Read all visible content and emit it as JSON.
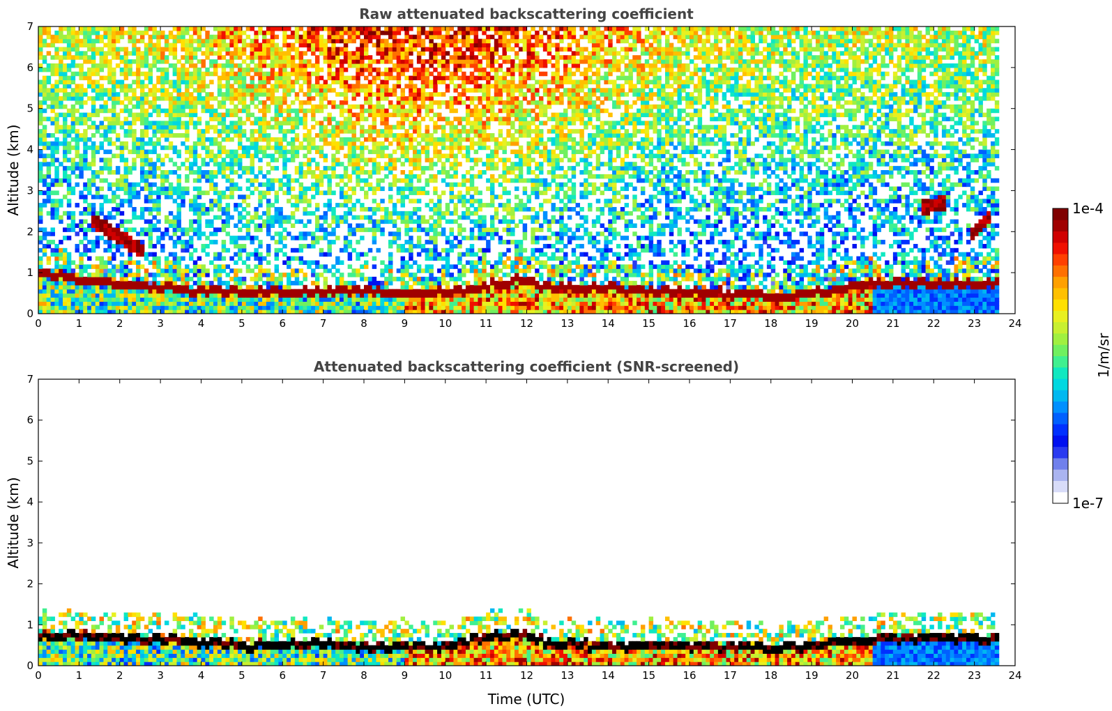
{
  "chart_data": [
    {
      "type": "heatmap",
      "id": "raw",
      "title": "Raw attenuated backscattering coefficient",
      "xlabel": "",
      "ylabel": "Altitude (km)",
      "xlim": [
        0,
        24
      ],
      "ylim": [
        0,
        7
      ],
      "xticks": [
        0,
        1,
        2,
        3,
        4,
        5,
        6,
        7,
        8,
        9,
        10,
        11,
        12,
        13,
        14,
        15,
        16,
        17,
        18,
        19,
        20,
        21,
        22,
        23,
        24
      ],
      "yticks": [
        0,
        1,
        2,
        3,
        4,
        5,
        6,
        7
      ],
      "data_end_time": 23.6,
      "noise_background": true,
      "features": [
        {
          "label": "boundary layer top (dense aerosol)",
          "x": [
            0,
            0.5,
            1,
            1.5,
            2,
            2.5,
            3,
            4,
            5,
            6,
            7,
            8,
            9,
            10,
            11,
            11.8,
            12.5,
            13,
            14,
            15,
            16,
            17,
            18,
            18.5,
            19,
            19.5,
            20,
            20.5
          ],
          "y": [
            1.0,
            0.95,
            0.85,
            0.8,
            0.75,
            0.7,
            0.65,
            0.6,
            0.55,
            0.55,
            0.55,
            0.6,
            0.5,
            0.55,
            0.7,
            0.85,
            0.65,
            0.65,
            0.65,
            0.6,
            0.55,
            0.5,
            0.45,
            0.45,
            0.5,
            0.6,
            0.7,
            0.75
          ]
        },
        {
          "label": "elevated layer",
          "x": [
            1.3,
            2.6
          ],
          "y": [
            2.3,
            1.5
          ]
        },
        {
          "label": "cloud",
          "x": [
            21.7,
            22.3
          ],
          "y": [
            2.6,
            2.7
          ]
        },
        {
          "label": "cloud",
          "x": [
            22.9,
            23.4
          ],
          "y": [
            1.9,
            2.4
          ]
        }
      ]
    },
    {
      "type": "heatmap",
      "id": "screened",
      "title": "Attenuated backscattering coefficient (SNR-screened)",
      "xlabel": "Time (UTC)",
      "ylabel": "Altitude (km)",
      "xlim": [
        0,
        24
      ],
      "ylim": [
        0,
        7
      ],
      "xticks": [
        0,
        1,
        2,
        3,
        4,
        5,
        6,
        7,
        8,
        9,
        10,
        11,
        12,
        13,
        14,
        15,
        16,
        17,
        18,
        19,
        20,
        21,
        22,
        23,
        24
      ],
      "yticks": [
        0,
        1,
        2,
        3,
        4,
        5,
        6,
        7
      ],
      "data_end_time": 23.6,
      "noise_background": false,
      "features": [
        {
          "label": "boundary layer top (saturated)",
          "x": [
            0,
            1,
            2,
            3,
            4,
            5,
            6,
            7,
            8,
            9,
            10,
            11,
            11.8,
            12.5,
            13,
            14,
            15,
            16,
            17,
            18,
            18.5,
            19,
            19.5,
            20,
            20.5
          ],
          "y": [
            0.75,
            0.75,
            0.7,
            0.65,
            0.6,
            0.5,
            0.55,
            0.55,
            0.5,
            0.5,
            0.5,
            0.7,
            0.8,
            0.6,
            0.55,
            0.5,
            0.5,
            0.5,
            0.5,
            0.45,
            0.45,
            0.5,
            0.6,
            0.65,
            0.7
          ]
        }
      ]
    }
  ],
  "colorbar": {
    "label": "1/m/sr",
    "max_label": "1e-4",
    "min_label": "1e-7",
    "colors": [
      "#ffffff",
      "#d8dcf8",
      "#aab4f0",
      "#7080ec",
      "#2a3af0",
      "#0010f0",
      "#0030ff",
      "#0060ff",
      "#0090ff",
      "#00b8f0",
      "#00d8e0",
      "#10e8c0",
      "#40f090",
      "#70f060",
      "#a0f040",
      "#c8f030",
      "#e8f020",
      "#ffe000",
      "#ffc000",
      "#ffa000",
      "#ff7000",
      "#ff4000",
      "#f01000",
      "#d00000",
      "#a00000",
      "#800000"
    ]
  }
}
